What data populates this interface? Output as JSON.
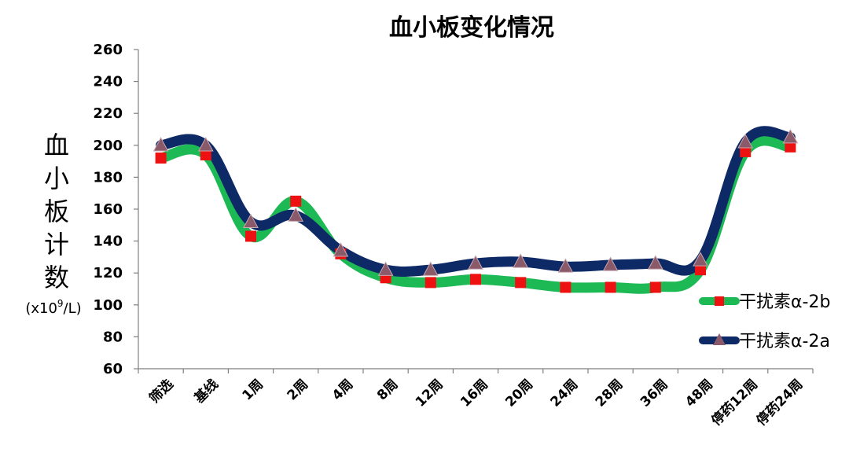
{
  "chart_data": {
    "type": "line",
    "title": "血小板变化情况",
    "ylabel_chars": [
      "血",
      "小",
      "板",
      "计",
      "数"
    ],
    "yunit_prefix": "(x10",
    "yunit_sup": "9",
    "yunit_suffix": "/L)",
    "xlabel": "",
    "ylim": [
      60,
      260
    ],
    "yticks": [
      60,
      80,
      100,
      120,
      140,
      160,
      180,
      200,
      220,
      240,
      260
    ],
    "categories": [
      "筛选",
      "基线",
      "1周",
      "2周",
      "4周",
      "8周",
      "12周",
      "16周",
      "20周",
      "24周",
      "28周",
      "36周",
      "48周",
      "停药12周",
      "停药24周"
    ],
    "series": [
      {
        "name": "干扰素α-2b",
        "values": [
          192,
          194,
          143,
          165,
          132,
          117,
          114,
          116,
          114,
          111,
          111,
          111,
          122,
          196,
          199
        ],
        "line_color": "#1db954",
        "marker": "square",
        "marker_color": "#ee1111"
      },
      {
        "name": "干扰素α-2a",
        "values": [
          200,
          200,
          152,
          156,
          134,
          122,
          122,
          126,
          127,
          124,
          125,
          126,
          128,
          202,
          205
        ],
        "line_color": "#0d2a66",
        "marker": "triangle",
        "marker_color": "#8a5a6a"
      }
    ],
    "grid": false,
    "legend_position": "right"
  }
}
